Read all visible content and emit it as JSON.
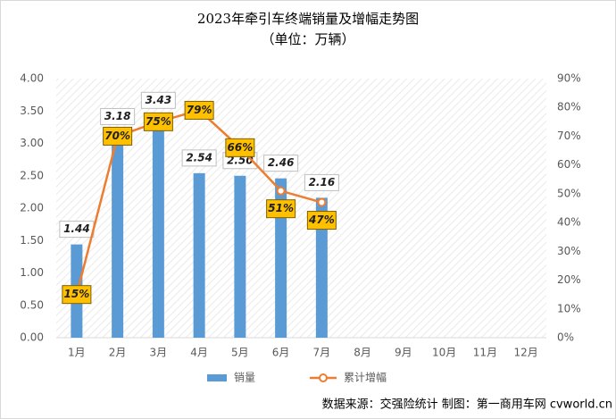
{
  "chart_data": {
    "type": "bar-line",
    "title": "2023年牵引车终端销量及增幅走势图",
    "subtitle": "（单位：万辆）",
    "source": "数据来源：交强险统计   制图：第一商用车网 cvworld.cn",
    "categories": [
      "1月",
      "2月",
      "3月",
      "4月",
      "5月",
      "6月",
      "7月",
      "8月",
      "9月",
      "10月",
      "11月",
      "12月"
    ],
    "series": [
      {
        "name": "销量",
        "type": "bar",
        "color": "#5b9bd5",
        "values": [
          1.44,
          3.18,
          3.43,
          2.54,
          2.5,
          2.46,
          2.16,
          null,
          null,
          null,
          null,
          null
        ],
        "value_labels": [
          "1.44",
          "3.18",
          "3.43",
          "2.54",
          "2.50",
          "2.46",
          "2.16",
          null,
          null,
          null,
          null,
          null
        ]
      },
      {
        "name": "累计增幅",
        "type": "line",
        "axis": "y2",
        "color": "#ed7d31",
        "values": [
          15,
          70,
          75,
          79,
          66,
          51,
          47,
          null,
          null,
          null,
          null,
          null
        ],
        "value_labels": [
          "15%",
          "70%",
          "75%",
          "79%",
          "66%",
          "51%",
          "47%",
          null,
          null,
          null,
          null,
          null
        ]
      }
    ],
    "ylim": [
      0,
      4
    ],
    "yticks": [
      {
        "value": 0,
        "label": "0.00"
      },
      {
        "value": 0.5,
        "label": "0.50"
      },
      {
        "value": 1,
        "label": "1.00"
      },
      {
        "value": 1.5,
        "label": "1.50"
      },
      {
        "value": 2,
        "label": "2.00"
      },
      {
        "value": 2.5,
        "label": "2.50"
      },
      {
        "value": 3,
        "label": "3.00"
      },
      {
        "value": 3.5,
        "label": "3.50"
      },
      {
        "value": 4,
        "label": "4.00"
      }
    ],
    "y2lim": [
      0,
      90
    ],
    "y2ticks": [
      {
        "value": 0,
        "label": "0%"
      },
      {
        "value": 10,
        "label": "10%"
      },
      {
        "value": 20,
        "label": "20%"
      },
      {
        "value": 30,
        "label": "30%"
      },
      {
        "value": 40,
        "label": "40%"
      },
      {
        "value": 50,
        "label": "50%"
      },
      {
        "value": 60,
        "label": "60%"
      },
      {
        "value": 70,
        "label": "70%"
      },
      {
        "value": 80,
        "label": "80%"
      },
      {
        "value": 90,
        "label": "90%"
      }
    ],
    "grid": false
  }
}
